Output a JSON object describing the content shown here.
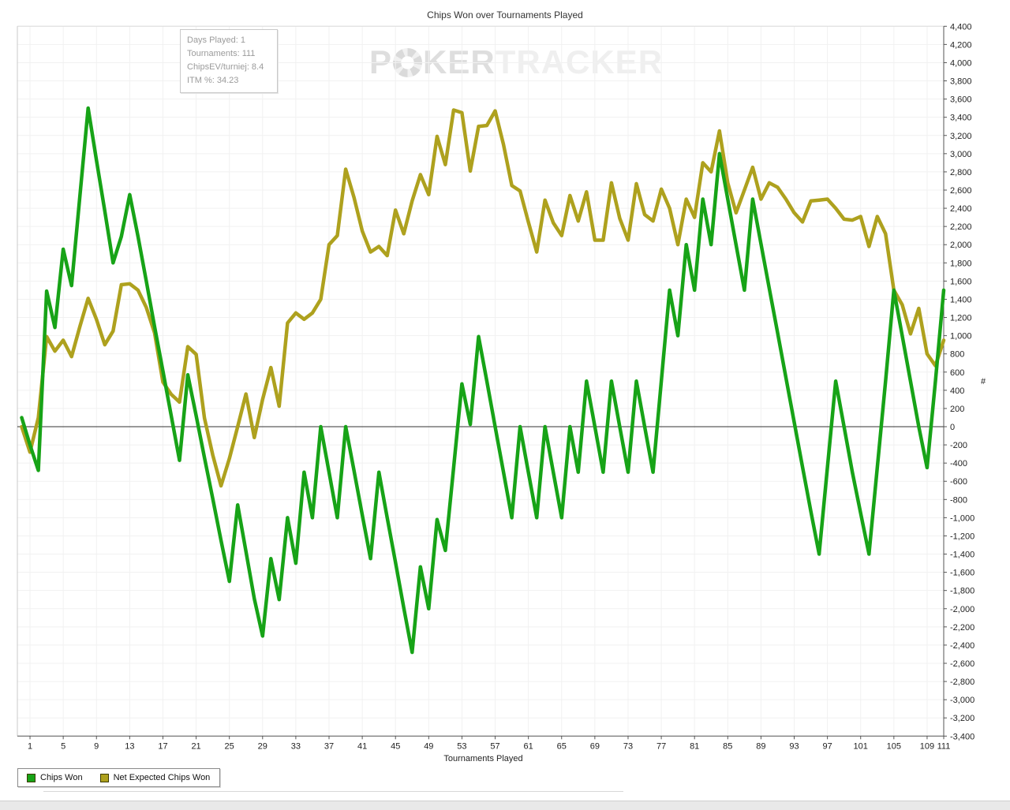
{
  "chart": {
    "title": "Chips Won over Tournaments Played",
    "x_axis_label": "Tournaments Played",
    "y_axis_label": "#",
    "watermark": {
      "part1": "P",
      "part2": "KER",
      "part3": "TRACKER",
      "chip_icon": "poker-chip-icon"
    },
    "tooltip": {
      "lines": [
        "Days Played: 1",
        "Tournaments: 111",
        "ChipsEV/turniej: 8.4",
        "ITM %: 34.23"
      ]
    },
    "legend": [
      {
        "label": "Chips Won",
        "color": "#17a317"
      },
      {
        "label": "Net Expected Chips Won",
        "color": "#aea11e"
      }
    ]
  },
  "chart_data": {
    "type": "line",
    "title": "Chips Won over Tournaments Played",
    "xlabel": "Tournaments Played",
    "ylabel": "#",
    "xlim": [
      0,
      111
    ],
    "ylim": [
      -3400,
      4400
    ],
    "y_tick_step": 200,
    "x_ticks": [
      1,
      5,
      9,
      13,
      17,
      21,
      25,
      29,
      33,
      37,
      41,
      45,
      49,
      53,
      57,
      61,
      65,
      69,
      73,
      77,
      81,
      85,
      89,
      93,
      97,
      101,
      105,
      109,
      111
    ],
    "grid": true,
    "legend_position": "bottom-left",
    "x_start": 0,
    "series": [
      {
        "name": "Chips Won",
        "color": "#17a317",
        "values": [
          100,
          -200,
          -480,
          1490,
          1090,
          1950,
          1550,
          2530,
          3500,
          2930,
          2370,
          1800,
          2090,
          2550,
          2090,
          1600,
          1100,
          610,
          120,
          -370,
          570,
          120,
          -340,
          -790,
          -1250,
          -1700,
          -860,
          -1370,
          -1890,
          -2300,
          -1450,
          -1900,
          -1000,
          -1500,
          -500,
          -1000,
          0,
          -500,
          -1000,
          0,
          -480,
          -970,
          -1450,
          -500,
          -1000,
          -1490,
          -1990,
          -2480,
          -1540,
          -2000,
          -1020,
          -1360,
          -450,
          470,
          25,
          990,
          500,
          0,
          -500,
          -1000,
          0,
          -500,
          -1000,
          0,
          -500,
          -1000,
          0,
          -500,
          500,
          0,
          -500,
          500,
          0,
          -500,
          500,
          0,
          -500,
          500,
          1500,
          1000,
          2000,
          1500,
          2500,
          2000,
          3000,
          2500,
          2000,
          1500,
          2500,
          2010,
          1520,
          1030,
          540,
          50,
          -440,
          -930,
          -1400,
          -450,
          500,
          0,
          -500,
          -950,
          -1400,
          -450,
          500,
          1500,
          1000,
          500,
          0,
          -450,
          500,
          1500
        ]
      },
      {
        "name": "Net Expected Chips Won",
        "color": "#aea11e",
        "values": [
          0,
          -280,
          100,
          990,
          830,
          950,
          770,
          1100,
          1410,
          1180,
          900,
          1050,
          1560,
          1570,
          1500,
          1310,
          1030,
          490,
          355,
          270,
          880,
          795,
          95,
          -310,
          -650,
          -350,
          0,
          360,
          -120,
          300,
          650,
          225,
          1140,
          1250,
          1180,
          1250,
          1400,
          2000,
          2100,
          2830,
          2520,
          2150,
          1920,
          1980,
          1880,
          2380,
          2120,
          2480,
          2770,
          2550,
          3190,
          2880,
          3480,
          3450,
          2810,
          3300,
          3310,
          3470,
          3100,
          2650,
          2590,
          2250,
          1920,
          2490,
          2240,
          2100,
          2540,
          2260,
          2580,
          2050,
          2050,
          2680,
          2290,
          2050,
          2670,
          2330,
          2260,
          2610,
          2400,
          2000,
          2500,
          2300,
          2900,
          2800,
          3250,
          2680,
          2350,
          2600,
          2850,
          2500,
          2680,
          2630,
          2500,
          2350,
          2250,
          2480,
          2490,
          2500,
          2400,
          2280,
          2270,
          2310,
          1980,
          2310,
          2120,
          1500,
          1340,
          1020,
          1300,
          800,
          670,
          950
        ]
      }
    ]
  }
}
